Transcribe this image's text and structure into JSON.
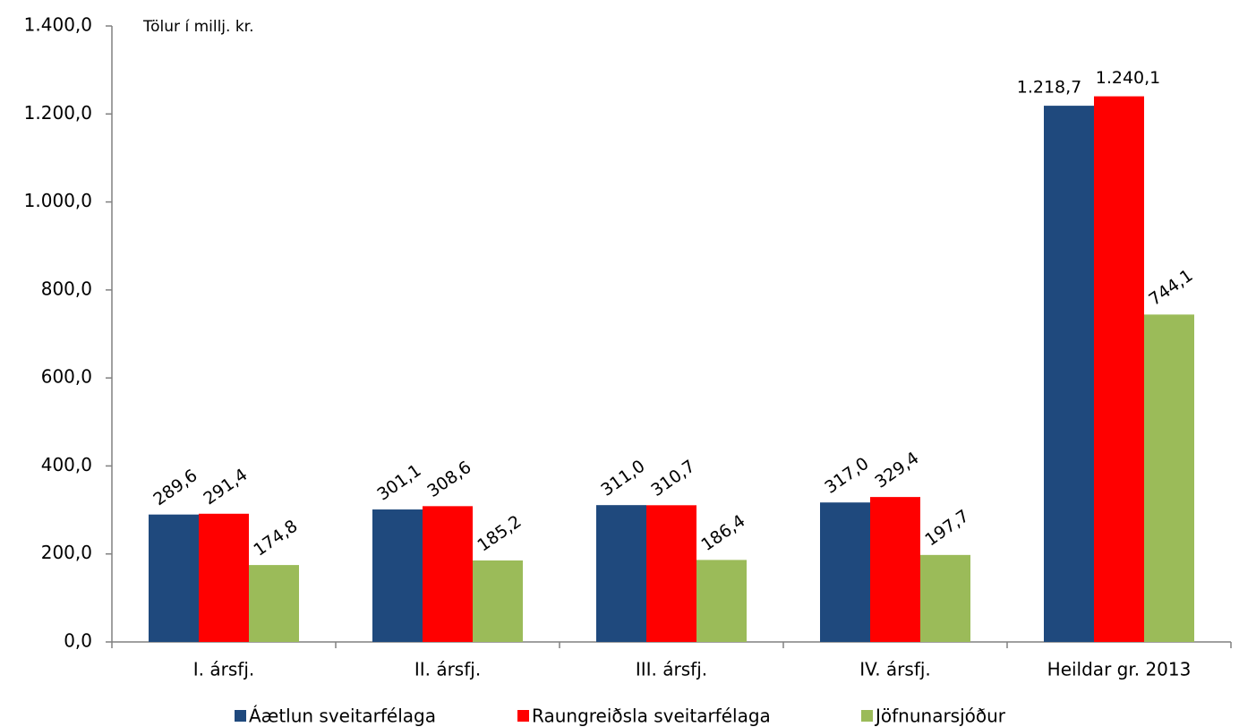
{
  "chart_data": {
    "type": "bar",
    "annotation": "Tölur í millj. kr.",
    "categories": [
      "I. ársfj.",
      "II. ársfj.",
      "III. ársfj.",
      "IV. ársfj.",
      "Heildar gr. 2013"
    ],
    "series": [
      {
        "name": "Áætlun sveitarfélaga",
        "color": "#1f497d",
        "values": [
          289.6,
          301.1,
          311.0,
          317.0,
          1218.7
        ],
        "value_labels": [
          "289,6",
          "301,1",
          "311,0",
          "317,0",
          "1.218,7"
        ]
      },
      {
        "name": "Raungreiðsla sveitarfélaga",
        "color": "#ff0000",
        "values": [
          291.4,
          308.6,
          310.7,
          329.4,
          1240.1
        ],
        "value_labels": [
          "291,4",
          "308,6",
          "310,7",
          "329,4",
          "1.240,1"
        ]
      },
      {
        "name": "Jöfnunarsjóður",
        "color": "#9bbb59",
        "values": [
          174.8,
          185.2,
          186.4,
          197.7,
          744.1
        ],
        "value_labels": [
          "174,8",
          "185,2",
          "186,4",
          "197,7",
          "744,1"
        ]
      }
    ],
    "ylim": [
      0,
      1400
    ],
    "yticks": [
      {
        "value": 0,
        "label": "0,0"
      },
      {
        "value": 200,
        "label": "200,0"
      },
      {
        "value": 400,
        "label": "400,0"
      },
      {
        "value": 600,
        "label": "600,0"
      },
      {
        "value": 800,
        "label": "800,0"
      },
      {
        "value": 1000,
        "label": "1.000,0"
      },
      {
        "value": 1200,
        "label": "1.200,0"
      },
      {
        "value": 1400,
        "label": "1.400,0"
      }
    ],
    "grid": false,
    "legend": "bottom"
  }
}
